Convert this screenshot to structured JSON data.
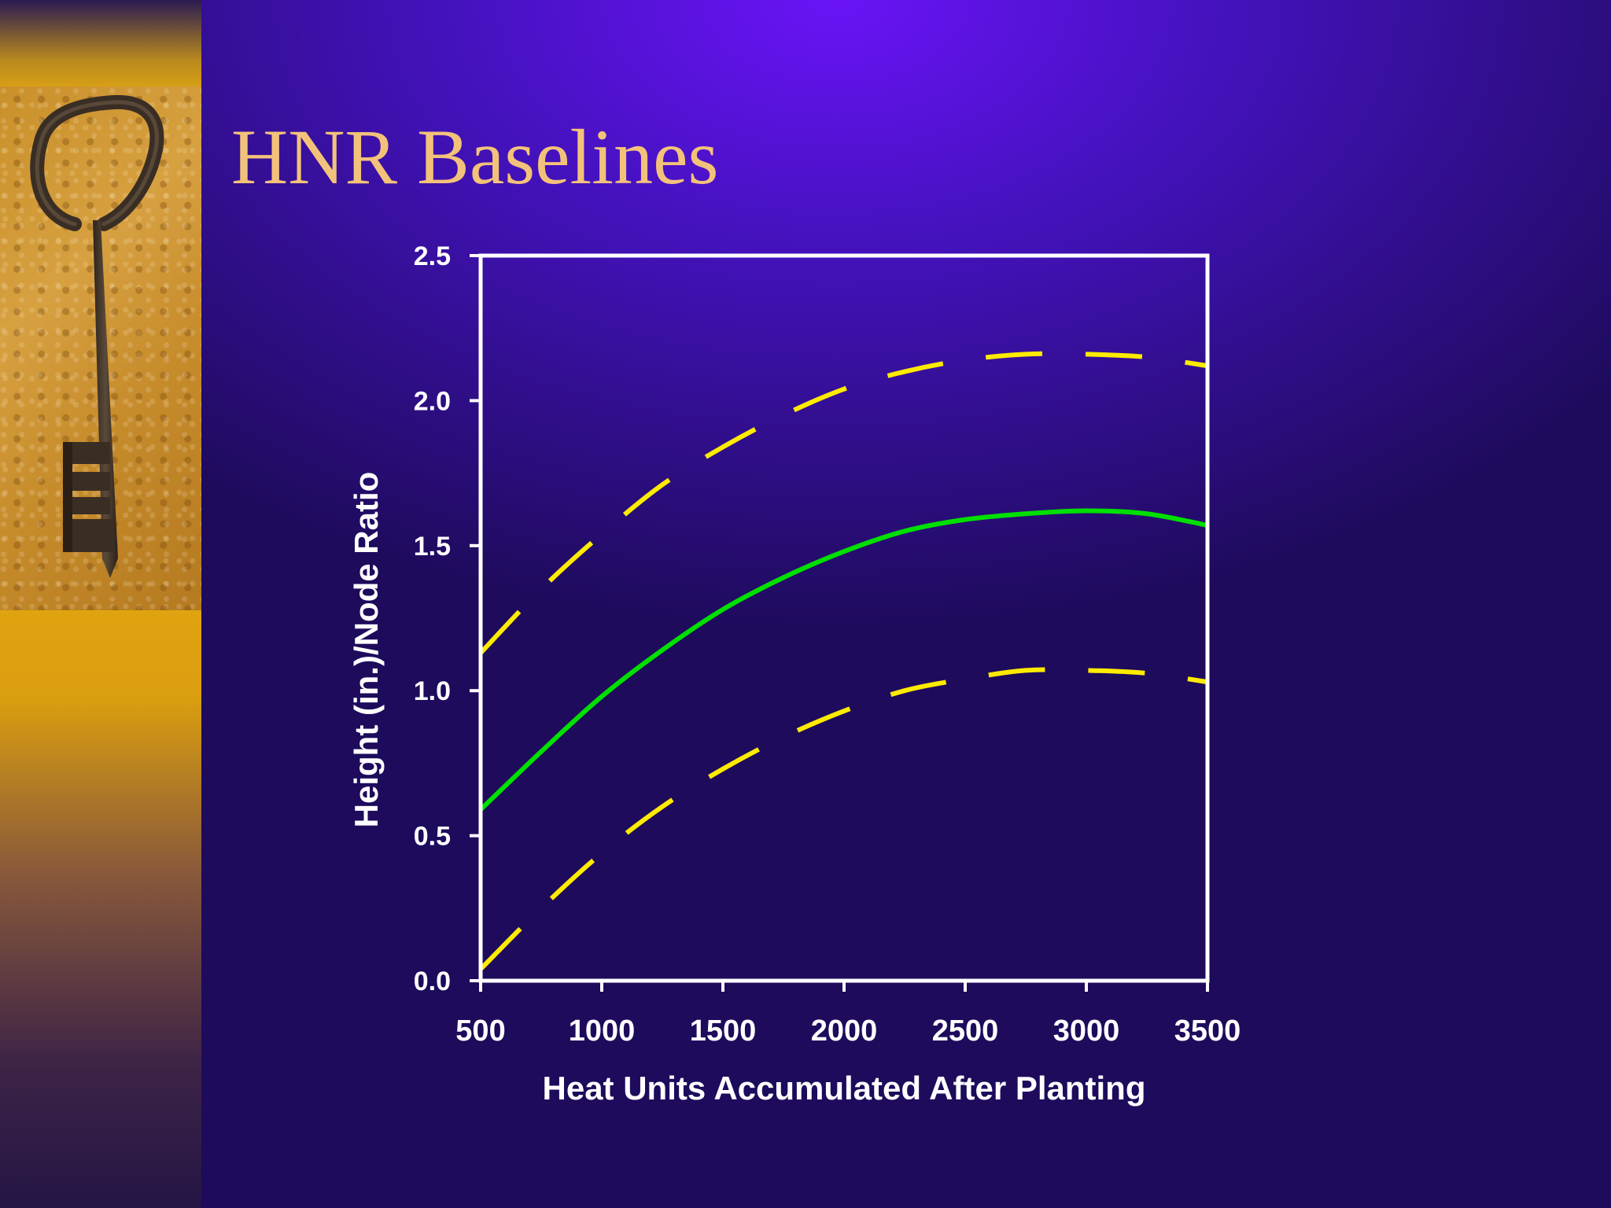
{
  "slide": {
    "title": "HNR Baselines",
    "colors": {
      "background": "#1e0b5c",
      "title": "#f3c27a"
    },
    "sidebar_image": "key-icon"
  },
  "chart_data": {
    "type": "line",
    "title": "",
    "xlabel": "Heat Units Accumulated After Planting",
    "ylabel": "Height (in.)/Node Ratio",
    "xlim": [
      500,
      3500
    ],
    "ylim": [
      0.0,
      2.5
    ],
    "xticks": [
      500,
      1000,
      1500,
      2000,
      2500,
      3000,
      3500
    ],
    "xtick_labels": [
      "500",
      "1000",
      "1500",
      "2000",
      "2500",
      "3000",
      "3500"
    ],
    "yticks": [
      0.0,
      0.5,
      1.0,
      1.5,
      2.0,
      2.5
    ],
    "ytick_labels": [
      "0.0",
      "0.5",
      "1.0",
      "1.5",
      "2.0",
      "2.5"
    ],
    "grid": false,
    "legend": "none",
    "series": [
      {
        "color": "#ffeb00",
        "style": "dashed",
        "x": [
          500,
          750,
          1000,
          1250,
          1500,
          1750,
          2000,
          2250,
          2500,
          2750,
          3000,
          3250,
          3500
        ],
        "y": [
          1.13,
          1.35,
          1.54,
          1.71,
          1.84,
          1.95,
          2.04,
          2.1,
          2.14,
          2.16,
          2.16,
          2.15,
          2.12
        ]
      },
      {
        "color": "#00e000",
        "style": "solid",
        "x": [
          500,
          750,
          1000,
          1250,
          1500,
          1750,
          2000,
          2250,
          2500,
          2750,
          3000,
          3250,
          3500
        ],
        "y": [
          0.59,
          0.79,
          0.98,
          1.14,
          1.28,
          1.39,
          1.48,
          1.55,
          1.59,
          1.61,
          1.62,
          1.61,
          1.57
        ]
      },
      {
        "color": "#ffeb00",
        "style": "dashed",
        "x": [
          500,
          750,
          1000,
          1250,
          1500,
          1750,
          2000,
          2250,
          2500,
          2750,
          3000,
          3250,
          3500
        ],
        "y": [
          0.04,
          0.25,
          0.44,
          0.6,
          0.73,
          0.84,
          0.93,
          1.0,
          1.04,
          1.07,
          1.07,
          1.06,
          1.03
        ]
      }
    ]
  }
}
